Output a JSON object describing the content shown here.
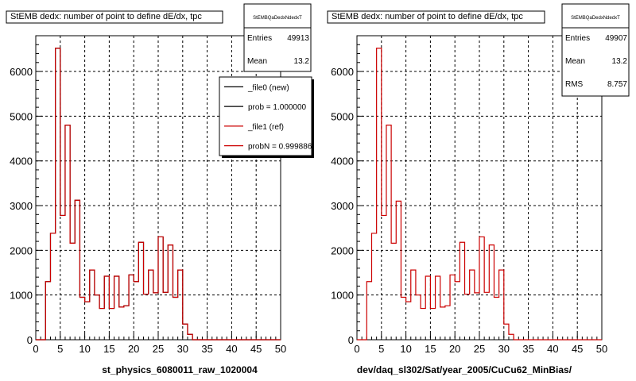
{
  "colors": {
    "new": "#000000",
    "ref": "#cc0000",
    "grid": "#000000"
  },
  "chart_data": [
    {
      "type": "bar",
      "title": "StEMB dedx: number of point to define dE/dx, tpc",
      "xlabel": "st_physics_6080011_raw_1020004",
      "ylabel": "",
      "xlim": [
        0,
        50
      ],
      "ylim": [
        0,
        6800
      ],
      "xticks": [
        "0",
        "5",
        "10",
        "15",
        "20",
        "25",
        "30",
        "35",
        "40",
        "45",
        "50"
      ],
      "yticks": [
        "0",
        "1000",
        "2000",
        "3000",
        "4000",
        "5000",
        "6000"
      ],
      "grid": true,
      "bin_width": 1,
      "bin_lows": [
        0,
        1,
        2,
        3,
        4,
        5,
        6,
        7,
        8,
        9,
        10,
        11,
        12,
        13,
        14,
        15,
        16,
        17,
        18,
        19,
        20,
        21,
        22,
        23,
        24,
        25,
        26,
        27,
        28,
        29,
        30,
        31,
        32,
        33,
        34,
        35,
        36,
        37,
        38,
        39,
        40,
        41,
        42,
        43,
        44,
        45,
        46,
        47,
        48,
        49
      ],
      "series": [
        {
          "name": "_file0 (new)",
          "values": [
            0,
            0,
            1300,
            2380,
            6520,
            2780,
            4800,
            2160,
            3120,
            950,
            850,
            1560,
            1000,
            700,
            1420,
            700,
            1420,
            730,
            760,
            1450,
            1300,
            2180,
            1020,
            1560,
            1050,
            2300,
            1060,
            2120,
            950,
            1560,
            350,
            120,
            0,
            0,
            0,
            0,
            0,
            0,
            0,
            0,
            0,
            0,
            0,
            0,
            0,
            0,
            0,
            0,
            0,
            0
          ]
        },
        {
          "name": "_file1 (ref)",
          "values": [
            0,
            0,
            1300,
            2380,
            6520,
            2780,
            4800,
            2160,
            3120,
            950,
            850,
            1560,
            1000,
            700,
            1420,
            700,
            1420,
            730,
            760,
            1450,
            1300,
            2180,
            1020,
            1560,
            1050,
            2300,
            1060,
            2120,
            950,
            1560,
            350,
            120,
            0,
            0,
            0,
            0,
            0,
            0,
            0,
            0,
            0,
            0,
            0,
            0,
            0,
            0,
            0,
            0,
            0,
            0
          ]
        }
      ],
      "stats": {
        "name": "StEMBQaDedxNdedxT",
        "entries": "49913",
        "mean": "13.2"
      },
      "legend_position": "top-right",
      "legend": [
        {
          "label": "_file0 (new)",
          "color": "#000000"
        },
        {
          "label": "prob = 1.000000",
          "color": "#000000"
        },
        {
          "label": "_file1 (ref)",
          "color": "#cc0000"
        },
        {
          "label": "probN = 0.999886",
          "color": "#cc0000"
        }
      ]
    },
    {
      "type": "bar",
      "title": "StEMB dedx: number of point to define dE/dx, tpc",
      "xlabel": "dev/daq_sl302/Sat/year_2005/CuCu62_MinBias/",
      "ylabel": "",
      "xlim": [
        0,
        50
      ],
      "ylim": [
        0,
        6800
      ],
      "xticks": [
        "0",
        "5",
        "10",
        "15",
        "20",
        "25",
        "30",
        "35",
        "40",
        "45",
        "50"
      ],
      "yticks": [
        "0",
        "1000",
        "2000",
        "3000",
        "4000",
        "5000",
        "6000"
      ],
      "grid": true,
      "bin_width": 1,
      "bin_lows": [
        0,
        1,
        2,
        3,
        4,
        5,
        6,
        7,
        8,
        9,
        10,
        11,
        12,
        13,
        14,
        15,
        16,
        17,
        18,
        19,
        20,
        21,
        22,
        23,
        24,
        25,
        26,
        27,
        28,
        29,
        30,
        31,
        32,
        33,
        34,
        35,
        36,
        37,
        38,
        39,
        40,
        41,
        42,
        43,
        44,
        45,
        46,
        47,
        48,
        49
      ],
      "series": [
        {
          "name": "_file1 (ref)",
          "values": [
            0,
            0,
            1300,
            2380,
            6520,
            2780,
            4800,
            2160,
            3100,
            950,
            850,
            1560,
            1000,
            700,
            1420,
            700,
            1420,
            730,
            760,
            1450,
            1300,
            2180,
            1020,
            1560,
            1050,
            2300,
            1060,
            2120,
            950,
            1560,
            350,
            120,
            0,
            0,
            0,
            0,
            0,
            0,
            0,
            0,
            0,
            0,
            0,
            0,
            0,
            0,
            0,
            0,
            0,
            0
          ]
        }
      ],
      "stats": {
        "name": "StEMBQaDedxNdedxT",
        "entries": "49907",
        "mean": "13.2",
        "rms": "8.757"
      }
    }
  ],
  "labels": {
    "entries": "Entries",
    "mean": "Mean",
    "rms": "RMS"
  }
}
